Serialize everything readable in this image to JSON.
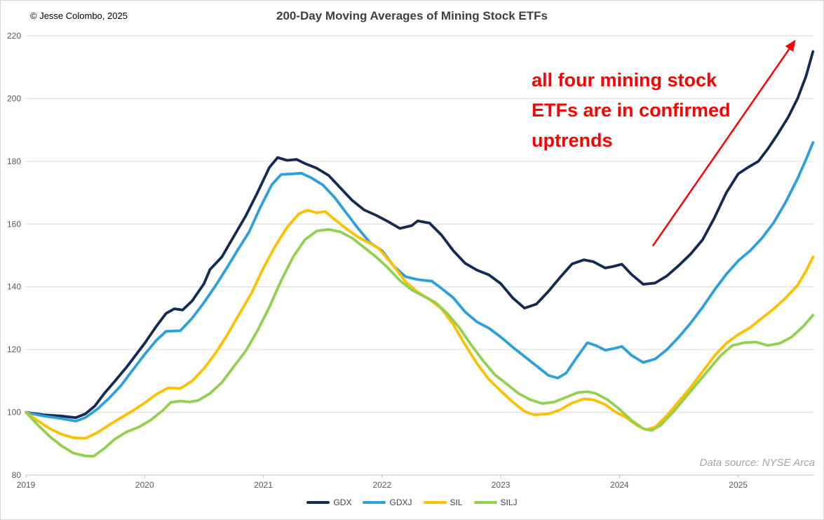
{
  "header": {
    "copyright": "© Jesse Colombo, 2025",
    "title": "200-Day Moving Averages of Mining Stock ETFs"
  },
  "annotation": {
    "text": "all four mining stock\nETFs are in confirmed\nuptrends",
    "color": "#ff0000",
    "arrow": {
      "from_year": 2024.28,
      "from_value": 153,
      "to_year": 2025.47,
      "to_value": 218
    }
  },
  "source_note": "Data source: NYSE Arca",
  "colors": {
    "gridline": "#d9d9d9",
    "axis_line": "#bfbfbf",
    "tick_label": "#595959",
    "title_text": "#404040",
    "annotation_red": "#ff0000"
  },
  "chart_data": {
    "type": "line",
    "title": "200-Day Moving Averages of Mining Stock ETFs",
    "xlabel": "",
    "ylabel": "",
    "grid": "horizontal",
    "legend_position": "bottom",
    "x_axis": {
      "min": 2019,
      "max": 2025.64,
      "ticks": [
        2019,
        2020,
        2021,
        2022,
        2023,
        2024,
        2025
      ]
    },
    "y_axis": {
      "min": 80,
      "max": 220,
      "ticks": [
        80,
        100,
        120,
        140,
        160,
        180,
        200,
        220
      ]
    },
    "series": [
      {
        "name": "GDX",
        "color": "#132a54",
        "points": [
          [
            2019.0,
            100
          ],
          [
            2019.15,
            99.2
          ],
          [
            2019.3,
            98.8
          ],
          [
            2019.42,
            98.3
          ],
          [
            2019.5,
            99.5
          ],
          [
            2019.58,
            102
          ],
          [
            2019.66,
            106
          ],
          [
            2019.75,
            110
          ],
          [
            2019.85,
            114.5
          ],
          [
            2020.0,
            122
          ],
          [
            2020.1,
            127.5
          ],
          [
            2020.18,
            131.5
          ],
          [
            2020.25,
            133
          ],
          [
            2020.32,
            132.6
          ],
          [
            2020.4,
            135.5
          ],
          [
            2020.5,
            141
          ],
          [
            2020.55,
            145.5
          ],
          [
            2020.65,
            149.5
          ],
          [
            2020.75,
            156
          ],
          [
            2020.85,
            162.5
          ],
          [
            2020.95,
            170
          ],
          [
            2021.05,
            178
          ],
          [
            2021.12,
            181.2
          ],
          [
            2021.2,
            180.3
          ],
          [
            2021.28,
            180.6
          ],
          [
            2021.35,
            179.3
          ],
          [
            2021.45,
            177.8
          ],
          [
            2021.55,
            175.5
          ],
          [
            2021.65,
            171.5
          ],
          [
            2021.75,
            167.5
          ],
          [
            2021.85,
            164.5
          ],
          [
            2021.95,
            162.8
          ],
          [
            2022.05,
            160.8
          ],
          [
            2022.15,
            158.6
          ],
          [
            2022.25,
            159.5
          ],
          [
            2022.3,
            161
          ],
          [
            2022.4,
            160.3
          ],
          [
            2022.5,
            156.5
          ],
          [
            2022.6,
            151.5
          ],
          [
            2022.7,
            147.5
          ],
          [
            2022.8,
            145.3
          ],
          [
            2022.9,
            143.8
          ],
          [
            2023.0,
            141
          ],
          [
            2023.1,
            136.5
          ],
          [
            2023.2,
            133.2
          ],
          [
            2023.3,
            134.5
          ],
          [
            2023.4,
            138.5
          ],
          [
            2023.5,
            143
          ],
          [
            2023.6,
            147.3
          ],
          [
            2023.7,
            148.6
          ],
          [
            2023.78,
            148
          ],
          [
            2023.88,
            146
          ],
          [
            2023.95,
            146.5
          ],
          [
            2024.02,
            147.2
          ],
          [
            2024.1,
            144
          ],
          [
            2024.2,
            140.8
          ],
          [
            2024.3,
            141.2
          ],
          [
            2024.4,
            143.5
          ],
          [
            2024.5,
            146.8
          ],
          [
            2024.6,
            150.5
          ],
          [
            2024.7,
            155
          ],
          [
            2024.8,
            162
          ],
          [
            2024.9,
            170
          ],
          [
            2025.0,
            176
          ],
          [
            2025.08,
            178
          ],
          [
            2025.17,
            180
          ],
          [
            2025.25,
            184
          ],
          [
            2025.33,
            188.5
          ],
          [
            2025.42,
            194
          ],
          [
            2025.5,
            200
          ],
          [
            2025.57,
            207
          ],
          [
            2025.63,
            215
          ]
        ]
      },
      {
        "name": "GDXJ",
        "color": "#2da0dc",
        "points": [
          [
            2019.0,
            100
          ],
          [
            2019.15,
            98.8
          ],
          [
            2019.3,
            98
          ],
          [
            2019.42,
            97.2
          ],
          [
            2019.5,
            98.3
          ],
          [
            2019.6,
            101
          ],
          [
            2019.7,
            104.5
          ],
          [
            2019.8,
            108.5
          ],
          [
            2019.9,
            113.5
          ],
          [
            2020.0,
            118.5
          ],
          [
            2020.1,
            123
          ],
          [
            2020.18,
            125.8
          ],
          [
            2020.3,
            126
          ],
          [
            2020.4,
            130
          ],
          [
            2020.5,
            135
          ],
          [
            2020.6,
            140.5
          ],
          [
            2020.7,
            146.5
          ],
          [
            2020.78,
            151.5
          ],
          [
            2020.88,
            157.5
          ],
          [
            2020.97,
            165
          ],
          [
            2021.07,
            172.5
          ],
          [
            2021.15,
            175.8
          ],
          [
            2021.25,
            176
          ],
          [
            2021.32,
            176.2
          ],
          [
            2021.4,
            174.8
          ],
          [
            2021.5,
            172.5
          ],
          [
            2021.6,
            168.5
          ],
          [
            2021.7,
            163.5
          ],
          [
            2021.8,
            158.5
          ],
          [
            2021.9,
            154
          ],
          [
            2022.0,
            151.5
          ],
          [
            2022.1,
            146.5
          ],
          [
            2022.2,
            143.2
          ],
          [
            2022.3,
            142.3
          ],
          [
            2022.42,
            141.8
          ],
          [
            2022.5,
            139.5
          ],
          [
            2022.6,
            136.5
          ],
          [
            2022.7,
            132
          ],
          [
            2022.8,
            128.8
          ],
          [
            2022.9,
            126.8
          ],
          [
            2023.0,
            124
          ],
          [
            2023.1,
            120.8
          ],
          [
            2023.2,
            117.8
          ],
          [
            2023.3,
            114.8
          ],
          [
            2023.4,
            111.8
          ],
          [
            2023.48,
            110.9
          ],
          [
            2023.55,
            112.5
          ],
          [
            2023.65,
            118
          ],
          [
            2023.73,
            122.2
          ],
          [
            2023.8,
            121.3
          ],
          [
            2023.88,
            119.8
          ],
          [
            2023.95,
            120.3
          ],
          [
            2024.02,
            121
          ],
          [
            2024.1,
            118.2
          ],
          [
            2024.2,
            115.9
          ],
          [
            2024.3,
            117
          ],
          [
            2024.4,
            120
          ],
          [
            2024.5,
            124
          ],
          [
            2024.6,
            128.5
          ],
          [
            2024.7,
            133.5
          ],
          [
            2024.8,
            139
          ],
          [
            2024.9,
            144
          ],
          [
            2025.0,
            148.3
          ],
          [
            2025.1,
            151.5
          ],
          [
            2025.2,
            155.5
          ],
          [
            2025.3,
            160.5
          ],
          [
            2025.4,
            167
          ],
          [
            2025.5,
            174.5
          ],
          [
            2025.57,
            180.5
          ],
          [
            2025.63,
            186
          ]
        ]
      },
      {
        "name": "SIL",
        "color": "#ffc000",
        "points": [
          [
            2019.0,
            100
          ],
          [
            2019.1,
            97.3
          ],
          [
            2019.2,
            94.8
          ],
          [
            2019.3,
            93
          ],
          [
            2019.4,
            91.9
          ],
          [
            2019.5,
            91.7
          ],
          [
            2019.6,
            93.5
          ],
          [
            2019.7,
            96
          ],
          [
            2019.8,
            98.3
          ],
          [
            2019.9,
            100.5
          ],
          [
            2020.0,
            103
          ],
          [
            2020.1,
            105.8
          ],
          [
            2020.2,
            107.8
          ],
          [
            2020.3,
            107.6
          ],
          [
            2020.4,
            110
          ],
          [
            2020.5,
            114
          ],
          [
            2020.6,
            119
          ],
          [
            2020.7,
            125
          ],
          [
            2020.8,
            131.5
          ],
          [
            2020.9,
            138
          ],
          [
            2021.0,
            146
          ],
          [
            2021.1,
            153
          ],
          [
            2021.2,
            159
          ],
          [
            2021.3,
            163.3
          ],
          [
            2021.37,
            164.4
          ],
          [
            2021.45,
            163.6
          ],
          [
            2021.52,
            164
          ],
          [
            2021.6,
            161.5
          ],
          [
            2021.7,
            158.5
          ],
          [
            2021.8,
            155.8
          ],
          [
            2021.9,
            153.8
          ],
          [
            2021.97,
            152.3
          ],
          [
            2022.1,
            146.5
          ],
          [
            2022.2,
            141.5
          ],
          [
            2022.3,
            138.3
          ],
          [
            2022.4,
            136
          ],
          [
            2022.5,
            133
          ],
          [
            2022.6,
            128
          ],
          [
            2022.7,
            121.5
          ],
          [
            2022.8,
            115.5
          ],
          [
            2022.9,
            110.5
          ],
          [
            2023.0,
            106.8
          ],
          [
            2023.1,
            103.3
          ],
          [
            2023.2,
            100.3
          ],
          [
            2023.28,
            99.2
          ],
          [
            2023.4,
            99.5
          ],
          [
            2023.5,
            100.8
          ],
          [
            2023.6,
            103
          ],
          [
            2023.7,
            104.3
          ],
          [
            2023.78,
            104
          ],
          [
            2023.88,
            102.5
          ],
          [
            2023.95,
            100.5
          ],
          [
            2024.05,
            98.5
          ],
          [
            2024.15,
            95.8
          ],
          [
            2024.22,
            94.5
          ],
          [
            2024.3,
            95.3
          ],
          [
            2024.4,
            99
          ],
          [
            2024.5,
            103.5
          ],
          [
            2024.6,
            108
          ],
          [
            2024.7,
            113
          ],
          [
            2024.8,
            118
          ],
          [
            2024.9,
            122
          ],
          [
            2025.0,
            124.8
          ],
          [
            2025.1,
            127
          ],
          [
            2025.2,
            130
          ],
          [
            2025.3,
            133
          ],
          [
            2025.4,
            136.5
          ],
          [
            2025.5,
            140.5
          ],
          [
            2025.57,
            145
          ],
          [
            2025.63,
            149.5
          ]
        ]
      },
      {
        "name": "SILJ",
        "color": "#92d050",
        "points": [
          [
            2019.0,
            100
          ],
          [
            2019.1,
            96
          ],
          [
            2019.2,
            92.3
          ],
          [
            2019.3,
            89.3
          ],
          [
            2019.4,
            87
          ],
          [
            2019.5,
            86.1
          ],
          [
            2019.57,
            86
          ],
          [
            2019.66,
            88.5
          ],
          [
            2019.75,
            91.5
          ],
          [
            2019.85,
            93.8
          ],
          [
            2019.95,
            95.3
          ],
          [
            2020.05,
            97.5
          ],
          [
            2020.15,
            100.5
          ],
          [
            2020.22,
            103.2
          ],
          [
            2020.3,
            103.6
          ],
          [
            2020.38,
            103.3
          ],
          [
            2020.45,
            103.8
          ],
          [
            2020.55,
            106
          ],
          [
            2020.65,
            109.5
          ],
          [
            2020.75,
            114.5
          ],
          [
            2020.85,
            119.5
          ],
          [
            2020.95,
            126
          ],
          [
            2021.05,
            133.5
          ],
          [
            2021.15,
            142
          ],
          [
            2021.25,
            149.5
          ],
          [
            2021.35,
            155
          ],
          [
            2021.45,
            157.8
          ],
          [
            2021.55,
            158.3
          ],
          [
            2021.65,
            157.5
          ],
          [
            2021.75,
            155.5
          ],
          [
            2021.85,
            152.5
          ],
          [
            2021.95,
            149.5
          ],
          [
            2022.05,
            146
          ],
          [
            2022.15,
            142
          ],
          [
            2022.25,
            139
          ],
          [
            2022.35,
            137
          ],
          [
            2022.45,
            135
          ],
          [
            2022.55,
            131.5
          ],
          [
            2022.65,
            127
          ],
          [
            2022.75,
            121.5
          ],
          [
            2022.85,
            116.5
          ],
          [
            2022.95,
            112
          ],
          [
            2023.05,
            109
          ],
          [
            2023.15,
            106
          ],
          [
            2023.25,
            104
          ],
          [
            2023.35,
            102.8
          ],
          [
            2023.45,
            103.3
          ],
          [
            2023.55,
            104.8
          ],
          [
            2023.65,
            106.3
          ],
          [
            2023.73,
            106.6
          ],
          [
            2023.8,
            106
          ],
          [
            2023.9,
            104
          ],
          [
            2024.0,
            101
          ],
          [
            2024.1,
            97.5
          ],
          [
            2024.2,
            94.8
          ],
          [
            2024.27,
            94.2
          ],
          [
            2024.35,
            96
          ],
          [
            2024.45,
            100
          ],
          [
            2024.55,
            104.5
          ],
          [
            2024.65,
            109
          ],
          [
            2024.75,
            113.5
          ],
          [
            2024.85,
            118
          ],
          [
            2024.95,
            121.3
          ],
          [
            2025.05,
            122.2
          ],
          [
            2025.15,
            122.4
          ],
          [
            2025.25,
            121.3
          ],
          [
            2025.35,
            122
          ],
          [
            2025.45,
            124
          ],
          [
            2025.55,
            127.5
          ],
          [
            2025.63,
            131
          ]
        ]
      }
    ]
  }
}
